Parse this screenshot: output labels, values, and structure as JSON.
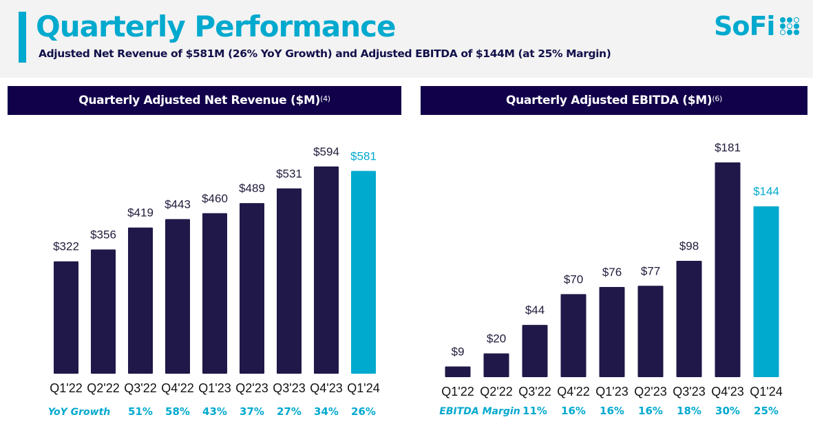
{
  "header": {
    "title": "Quarterly Performance",
    "subtitle": "Adjusted Net Revenue of $581M (26% YoY Growth) and Adjusted EBITDA of $144M (at 25% Margin)",
    "logo_text": "SoFi",
    "accent_color": "#00a9ce",
    "navy_color": "#11004a"
  },
  "chart_data": [
    {
      "type": "bar",
      "title": "Quarterly Adjusted Net Revenue ($M)",
      "title_footnote": "(4)",
      "xlabel": "",
      "ylabel": "",
      "ylim": [
        0,
        600
      ],
      "grid": false,
      "categories": [
        "Q1'22",
        "Q2'22",
        "Q3'22",
        "Q4'22",
        "Q1'23",
        "Q2'23",
        "Q3'23",
        "Q4'23",
        "Q1'24"
      ],
      "values": [
        322,
        356,
        419,
        443,
        460,
        489,
        531,
        594,
        581
      ],
      "value_labels": [
        "$322",
        "$356",
        "$419",
        "$443",
        "$460",
        "$489",
        "$531",
        "$594",
        "$581"
      ],
      "highlight_index": 8,
      "bar_color": "#201848",
      "highlight_color": "#00a9ce",
      "metric_row": {
        "label": "YoY Growth",
        "values": [
          "",
          "",
          "51%",
          "58%",
          "43%",
          "37%",
          "27%",
          "34%",
          "26%"
        ]
      }
    },
    {
      "type": "bar",
      "title": "Quarterly Adjusted EBITDA ($M)",
      "title_footnote": "(6)",
      "xlabel": "",
      "ylabel": "",
      "ylim": [
        0,
        185
      ],
      "grid": false,
      "categories": [
        "Q1'22",
        "Q2'22",
        "Q3'22",
        "Q4'22",
        "Q1'23",
        "Q2'23",
        "Q3'23",
        "Q4'23",
        "Q1'24"
      ],
      "values": [
        9,
        20,
        44,
        70,
        76,
        77,
        98,
        181,
        144
      ],
      "value_labels": [
        "$9",
        "$20",
        "$44",
        "$70",
        "$76",
        "$77",
        "$98",
        "$181",
        "$144"
      ],
      "highlight_index": 8,
      "bar_color": "#201848",
      "highlight_color": "#00a9ce",
      "metric_row": {
        "label": "EBITDA Margin",
        "values": [
          "",
          "",
          "11%",
          "16%",
          "16%",
          "16%",
          "18%",
          "30%",
          "25%"
        ]
      }
    }
  ]
}
